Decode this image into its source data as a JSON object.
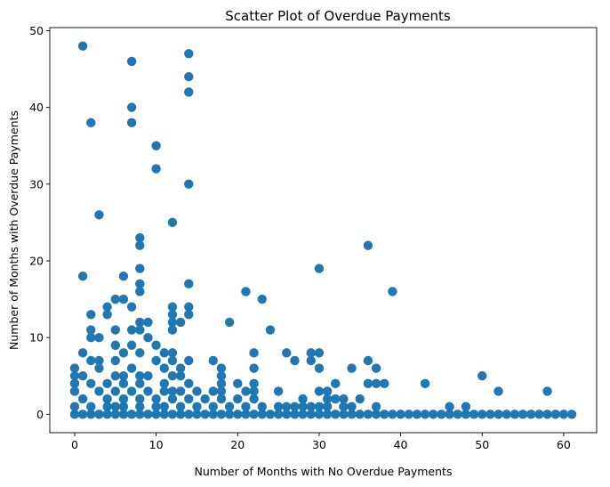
{
  "chart_data": {
    "type": "scatter",
    "title": "Scatter Plot of Overdue Payments",
    "xlabel": "Number of Months with No Overdue Payments",
    "ylabel": "Number of Months with Overdue Payments",
    "xlim": [
      -3.05,
      64.05
    ],
    "ylim": [
      -2.4,
      50.4
    ],
    "xticks": [
      0,
      10,
      20,
      30,
      40,
      50,
      60
    ],
    "yticks": [
      0,
      10,
      20,
      30,
      40,
      50
    ],
    "grid": false,
    "legend": "none",
    "marker_color": "#1f77b4",
    "points": [
      [
        1,
        48
      ],
      [
        7,
        46
      ],
      [
        14,
        47
      ],
      [
        14,
        44
      ],
      [
        14,
        42
      ],
      [
        7,
        40
      ],
      [
        7,
        38
      ],
      [
        2,
        38
      ],
      [
        10,
        35
      ],
      [
        10,
        32
      ],
      [
        14,
        30
      ],
      [
        3,
        26
      ],
      [
        12,
        25
      ],
      [
        8,
        23
      ],
      [
        8,
        22
      ],
      [
        36,
        22
      ],
      [
        30,
        19
      ],
      [
        8,
        19
      ],
      [
        1,
        18
      ],
      [
        6,
        18
      ],
      [
        8,
        17
      ],
      [
        14,
        17
      ],
      [
        8,
        16
      ],
      [
        21,
        16
      ],
      [
        39,
        16
      ],
      [
        23,
        15
      ],
      [
        5,
        15
      ],
      [
        6,
        15
      ],
      [
        7,
        14
      ],
      [
        4,
        14
      ],
      [
        12,
        14
      ],
      [
        14,
        14
      ],
      [
        2,
        13
      ],
      [
        4,
        13
      ],
      [
        12,
        13
      ],
      [
        14,
        13
      ],
      [
        8,
        12
      ],
      [
        9,
        12
      ],
      [
        12,
        12
      ],
      [
        13,
        12
      ],
      [
        19,
        12
      ],
      [
        2,
        11
      ],
      [
        5,
        11
      ],
      [
        7,
        11
      ],
      [
        8,
        11
      ],
      [
        12,
        11
      ],
      [
        24,
        11
      ],
      [
        2,
        10
      ],
      [
        3,
        10
      ],
      [
        9,
        10
      ],
      [
        1,
        8
      ],
      [
        7,
        9
      ],
      [
        10,
        9
      ],
      [
        5,
        9
      ],
      [
        11,
        8
      ],
      [
        12,
        8
      ],
      [
        6,
        8
      ],
      [
        8,
        8
      ],
      [
        22,
        8
      ],
      [
        26,
        8
      ],
      [
        29,
        8
      ],
      [
        30,
        8
      ],
      [
        10,
        7
      ],
      [
        12,
        7
      ],
      [
        14,
        7
      ],
      [
        17,
        7
      ],
      [
        27,
        7
      ],
      [
        29,
        7
      ],
      [
        36,
        7
      ],
      [
        2,
        7
      ],
      [
        3,
        7
      ],
      [
        5,
        7
      ],
      [
        0,
        6
      ],
      [
        3,
        6
      ],
      [
        7,
        6
      ],
      [
        11,
        6
      ],
      [
        13,
        6
      ],
      [
        18,
        6
      ],
      [
        22,
        6
      ],
      [
        30,
        6
      ],
      [
        34,
        6
      ],
      [
        37,
        6
      ],
      [
        0,
        5
      ],
      [
        1,
        5
      ],
      [
        5,
        5
      ],
      [
        6,
        5
      ],
      [
        8,
        5
      ],
      [
        9,
        5
      ],
      [
        12,
        5
      ],
      [
        13,
        5
      ],
      [
        18,
        5
      ],
      [
        50,
        5
      ],
      [
        0,
        4
      ],
      [
        2,
        4
      ],
      [
        4,
        4
      ],
      [
        6,
        4
      ],
      [
        8,
        4
      ],
      [
        11,
        4
      ],
      [
        14,
        4
      ],
      [
        18,
        4
      ],
      [
        20,
        4
      ],
      [
        22,
        4
      ],
      [
        32,
        4
      ],
      [
        36,
        4
      ],
      [
        37,
        4
      ],
      [
        38,
        4
      ],
      [
        43,
        4
      ],
      [
        0,
        3
      ],
      [
        3,
        3
      ],
      [
        5,
        3
      ],
      [
        7,
        3
      ],
      [
        9,
        3
      ],
      [
        11,
        3
      ],
      [
        12,
        3
      ],
      [
        13,
        3
      ],
      [
        15,
        3
      ],
      [
        17,
        3
      ],
      [
        18,
        3
      ],
      [
        21,
        3
      ],
      [
        22,
        3
      ],
      [
        25,
        3
      ],
      [
        30,
        3
      ],
      [
        31,
        3
      ],
      [
        52,
        3
      ],
      [
        58,
        3
      ],
      [
        1,
        2
      ],
      [
        4,
        2
      ],
      [
        6,
        2
      ],
      [
        8,
        2
      ],
      [
        10,
        2
      ],
      [
        12,
        2
      ],
      [
        14,
        2
      ],
      [
        16,
        2
      ],
      [
        18,
        2
      ],
      [
        20,
        2
      ],
      [
        22,
        2
      ],
      [
        28,
        2
      ],
      [
        31,
        2
      ],
      [
        32,
        2
      ],
      [
        33,
        2
      ],
      [
        35,
        2
      ],
      [
        0,
        1
      ],
      [
        2,
        1
      ],
      [
        4,
        1
      ],
      [
        5,
        1
      ],
      [
        6,
        1
      ],
      [
        8,
        1
      ],
      [
        10,
        1
      ],
      [
        11,
        1
      ],
      [
        13,
        1
      ],
      [
        15,
        1
      ],
      [
        17,
        1
      ],
      [
        19,
        1
      ],
      [
        21,
        1
      ],
      [
        23,
        1
      ],
      [
        25,
        1
      ],
      [
        26,
        1
      ],
      [
        27,
        1
      ],
      [
        28,
        1
      ],
      [
        29,
        1
      ],
      [
        30,
        1
      ],
      [
        31,
        1
      ],
      [
        33,
        1
      ],
      [
        34,
        1
      ],
      [
        37,
        1
      ],
      [
        46,
        1
      ],
      [
        48,
        1
      ],
      [
        0,
        0
      ],
      [
        1,
        0
      ],
      [
        2,
        0
      ],
      [
        3,
        0
      ],
      [
        4,
        0
      ],
      [
        5,
        0
      ],
      [
        6,
        0
      ],
      [
        7,
        0
      ],
      [
        8,
        0
      ],
      [
        9,
        0
      ],
      [
        10,
        0
      ],
      [
        11,
        0
      ],
      [
        12,
        0
      ],
      [
        13,
        0
      ],
      [
        14,
        0
      ],
      [
        15,
        0
      ],
      [
        16,
        0
      ],
      [
        17,
        0
      ],
      [
        18,
        0
      ],
      [
        19,
        0
      ],
      [
        20,
        0
      ],
      [
        21,
        0
      ],
      [
        22,
        0
      ],
      [
        23,
        0
      ],
      [
        24,
        0
      ],
      [
        25,
        0
      ],
      [
        26,
        0
      ],
      [
        27,
        0
      ],
      [
        28,
        0
      ],
      [
        29,
        0
      ],
      [
        30,
        0
      ],
      [
        31,
        0
      ],
      [
        32,
        0
      ],
      [
        33,
        0
      ],
      [
        34,
        0
      ],
      [
        35,
        0
      ],
      [
        36,
        0
      ],
      [
        37,
        0
      ],
      [
        38,
        0
      ],
      [
        39,
        0
      ],
      [
        40,
        0
      ],
      [
        41,
        0
      ],
      [
        42,
        0
      ],
      [
        43,
        0
      ],
      [
        44,
        0
      ],
      [
        45,
        0
      ],
      [
        46,
        0
      ],
      [
        47,
        0
      ],
      [
        48,
        0
      ],
      [
        49,
        0
      ],
      [
        50,
        0
      ],
      [
        51,
        0
      ],
      [
        52,
        0
      ],
      [
        53,
        0
      ],
      [
        54,
        0
      ],
      [
        55,
        0
      ],
      [
        56,
        0
      ],
      [
        57,
        0
      ],
      [
        58,
        0
      ],
      [
        59,
        0
      ],
      [
        60,
        0
      ],
      [
        61,
        0
      ]
    ]
  }
}
